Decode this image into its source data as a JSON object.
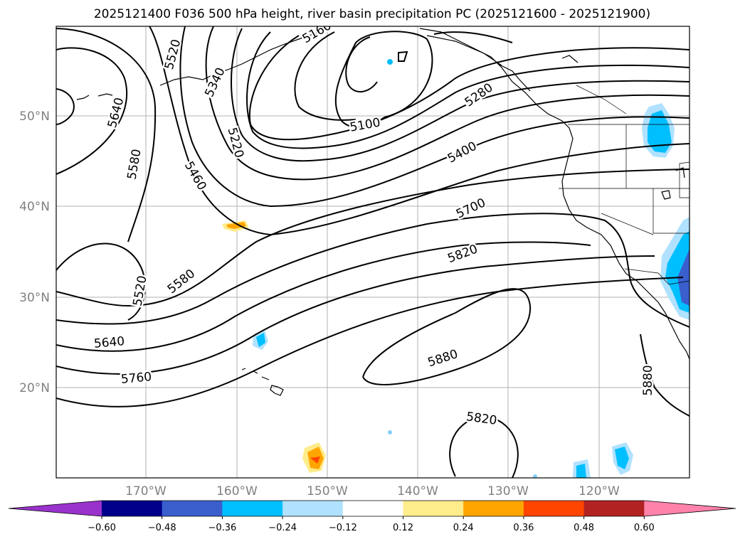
{
  "title": "2025121400 F036 500 hPa height, river basin precipitation PC (2025121600 - 2025121900)",
  "lat_labels": [
    "50°N",
    "40°N",
    "30°N",
    "20°N"
  ],
  "lon_labels": [
    "170°W",
    "160°W",
    "150°W",
    "140°W",
    "130°W",
    "120°W"
  ],
  "contour_labels": [
    "5520",
    "5640",
    "5580",
    "5340",
    "5220",
    "5460",
    "5100",
    "5280",
    "5400",
    "5700",
    "5820",
    "5580",
    "5520",
    "5640",
    "5760",
    "5880",
    "5820",
    "5880",
    "5160"
  ],
  "colorbar": {
    "ticks": [
      "−0.60",
      "−0.48",
      "−0.36",
      "−0.24",
      "−0.12",
      "0.12",
      "0.24",
      "0.36",
      "0.48",
      "0.60"
    ],
    "colors": [
      "#9932cc",
      "#00008b",
      "#3a5fcd",
      "#00bfff",
      "#b0e2ff",
      "#ffffff",
      "#ffec8b",
      "#ffa500",
      "#ff4500",
      "#b22222",
      "#ff82ab"
    ]
  }
}
